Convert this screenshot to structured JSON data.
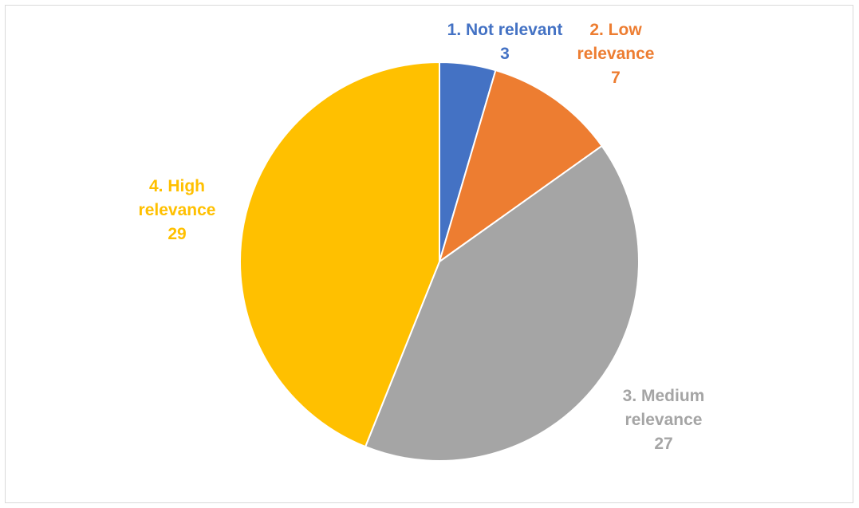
{
  "chart_data": {
    "type": "pie",
    "title": "",
    "slices": [
      {
        "name": "1. Not relevant",
        "label_lines": [
          "1. Not relevant"
        ],
        "value": 3,
        "color": "#4472C4"
      },
      {
        "name": "2. Low relevance",
        "label_lines": [
          "2. Low",
          "relevance"
        ],
        "value": 7,
        "color": "#ED7D31"
      },
      {
        "name": "3. Medium relevance",
        "label_lines": [
          "3. Medium",
          "relevance"
        ],
        "value": 27,
        "color": "#A5A5A5"
      },
      {
        "name": "4. High relevance",
        "label_lines": [
          "4. High",
          "relevance"
        ],
        "value": 29,
        "color": "#FFC000"
      }
    ],
    "legend": "none",
    "data_labels": "category name and value, outside end"
  }
}
